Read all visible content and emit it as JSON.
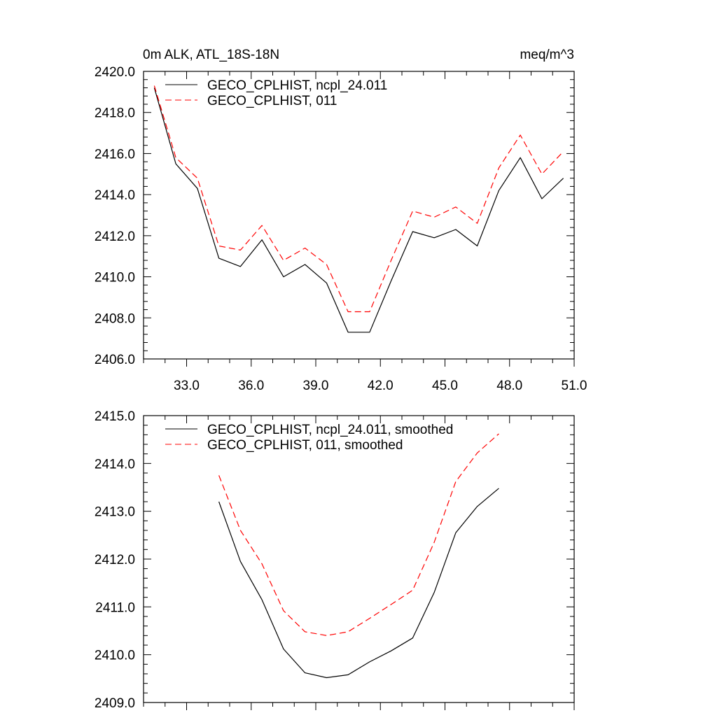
{
  "colors": {
    "series_1": "#000000",
    "series_2": "#ff0000",
    "axis": "#000000",
    "background": "#ffffff"
  },
  "chart_data": [
    {
      "type": "line",
      "title": "0m ALK, ATL_18S-18N",
      "units_label": "meq/m^3",
      "xlabel": "",
      "ylabel": "",
      "xlim": [
        31.0,
        51.0
      ],
      "ylim": [
        2406.0,
        2420.0
      ],
      "x_ticks": [
        33.0,
        36.0,
        39.0,
        42.0,
        45.0,
        48.0,
        51.0
      ],
      "x_tick_labels": [
        "33.0",
        "36.0",
        "39.0",
        "42.0",
        "45.0",
        "48.0",
        "51.0"
      ],
      "y_ticks": [
        2406.0,
        2408.0,
        2410.0,
        2412.0,
        2414.0,
        2416.0,
        2418.0,
        2420.0
      ],
      "y_tick_labels": [
        "2406.0",
        "2408.0",
        "2410.0",
        "2412.0",
        "2414.0",
        "2416.0",
        "2418.0",
        "2420.0"
      ],
      "legend_position": "top-left",
      "x": [
        31.5,
        32.5,
        33.5,
        34.5,
        35.5,
        36.5,
        37.5,
        38.5,
        39.5,
        40.5,
        41.5,
        42.5,
        43.5,
        44.5,
        45.5,
        46.5,
        47.5,
        48.5,
        49.5,
        50.5
      ],
      "series": [
        {
          "name": "GECO_CPLHIST, ncpl_24.011",
          "style": "solid",
          "values": [
            2419.2,
            2415.5,
            2414.3,
            2410.9,
            2410.5,
            2411.8,
            2410.0,
            2410.6,
            2409.7,
            2407.3,
            2407.3,
            2409.8,
            2412.2,
            2411.9,
            2412.3,
            2411.5,
            2414.2,
            2415.8,
            2413.8,
            2414.8
          ]
        },
        {
          "name": "GECO_CPLHIST, 011",
          "style": "dashed",
          "values": [
            2419.3,
            2415.8,
            2414.8,
            2411.5,
            2411.3,
            2412.5,
            2410.8,
            2411.4,
            2410.6,
            2408.3,
            2408.3,
            2410.8,
            2413.2,
            2412.9,
            2413.4,
            2412.6,
            2415.3,
            2416.9,
            2415.0,
            2416.1
          ]
        }
      ]
    },
    {
      "type": "line",
      "title": "",
      "xlabel": "",
      "ylabel": "",
      "xlim": [
        31.0,
        51.0
      ],
      "ylim": [
        2409.0,
        2415.0
      ],
      "x_ticks": [
        33.0,
        36.0,
        39.0,
        42.0,
        45.0,
        48.0,
        51.0
      ],
      "y_ticks": [
        2409.0,
        2410.0,
        2411.0,
        2412.0,
        2413.0,
        2414.0,
        2415.0
      ],
      "y_tick_labels": [
        "2409.0",
        "2410.0",
        "2411.0",
        "2412.0",
        "2413.0",
        "2414.0",
        "2415.0"
      ],
      "legend_position": "top-left",
      "x": [
        34.5,
        35.5,
        36.5,
        37.5,
        38.5,
        39.5,
        40.5,
        41.5,
        42.5,
        43.5,
        44.5,
        45.5,
        46.5,
        47.5
      ],
      "series": [
        {
          "name": "GECO_CPLHIST, ncpl_24.011, smoothed",
          "style": "solid",
          "values": [
            2413.2,
            2411.95,
            2411.15,
            2410.12,
            2409.62,
            2409.52,
            2409.58,
            2409.85,
            2410.08,
            2410.35,
            2411.3,
            2412.55,
            2413.1,
            2413.48
          ]
        },
        {
          "name": "GECO_CPLHIST, 011, smoothed",
          "style": "dashed",
          "values": [
            2413.75,
            2412.6,
            2411.9,
            2410.92,
            2410.48,
            2410.4,
            2410.48,
            2410.76,
            2411.05,
            2411.35,
            2412.35,
            2413.62,
            2414.22,
            2414.62
          ]
        }
      ]
    }
  ]
}
